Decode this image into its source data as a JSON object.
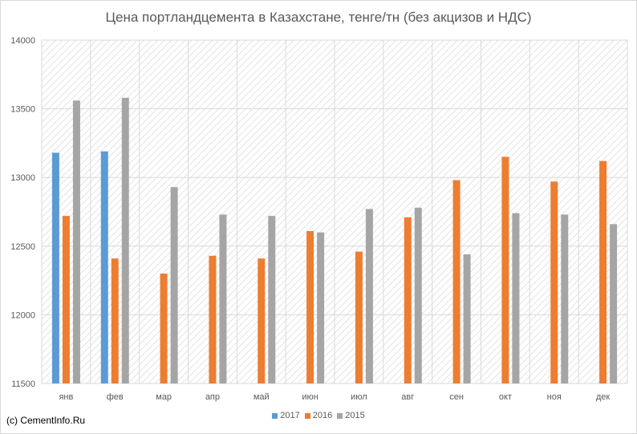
{
  "chart_data": {
    "type": "bar",
    "title": "Цена портландцемента в Казахстане, тенге/тн (без акцизов и НДС)",
    "categories": [
      "янв",
      "фев",
      "мар",
      "апр",
      "май",
      "июн",
      "июл",
      "авг",
      "сен",
      "окт",
      "ноя",
      "дек"
    ],
    "series": [
      {
        "name": "2017",
        "color": "#5b9bd5",
        "values": [
          13180,
          13190,
          null,
          null,
          null,
          null,
          null,
          null,
          null,
          null,
          null,
          null
        ]
      },
      {
        "name": "2016",
        "color": "#ed7d31",
        "values": [
          12720,
          12410,
          12300,
          12430,
          12410,
          12610,
          12460,
          12710,
          12980,
          13150,
          12970,
          13120
        ]
      },
      {
        "name": "2015",
        "color": "#a5a5a5",
        "values": [
          13560,
          13580,
          12930,
          12730,
          12720,
          12600,
          12770,
          12780,
          12440,
          12740,
          12730,
          12660
        ]
      }
    ],
    "ylim": [
      11500,
      14000
    ],
    "yticks": [
      "11500",
      "12000",
      "12500",
      "13000",
      "13500",
      "14000"
    ],
    "xlabel": "",
    "ylabel": "",
    "grid": true,
    "legend": "bottom"
  },
  "credit": "(c) CementInfo.Ru"
}
